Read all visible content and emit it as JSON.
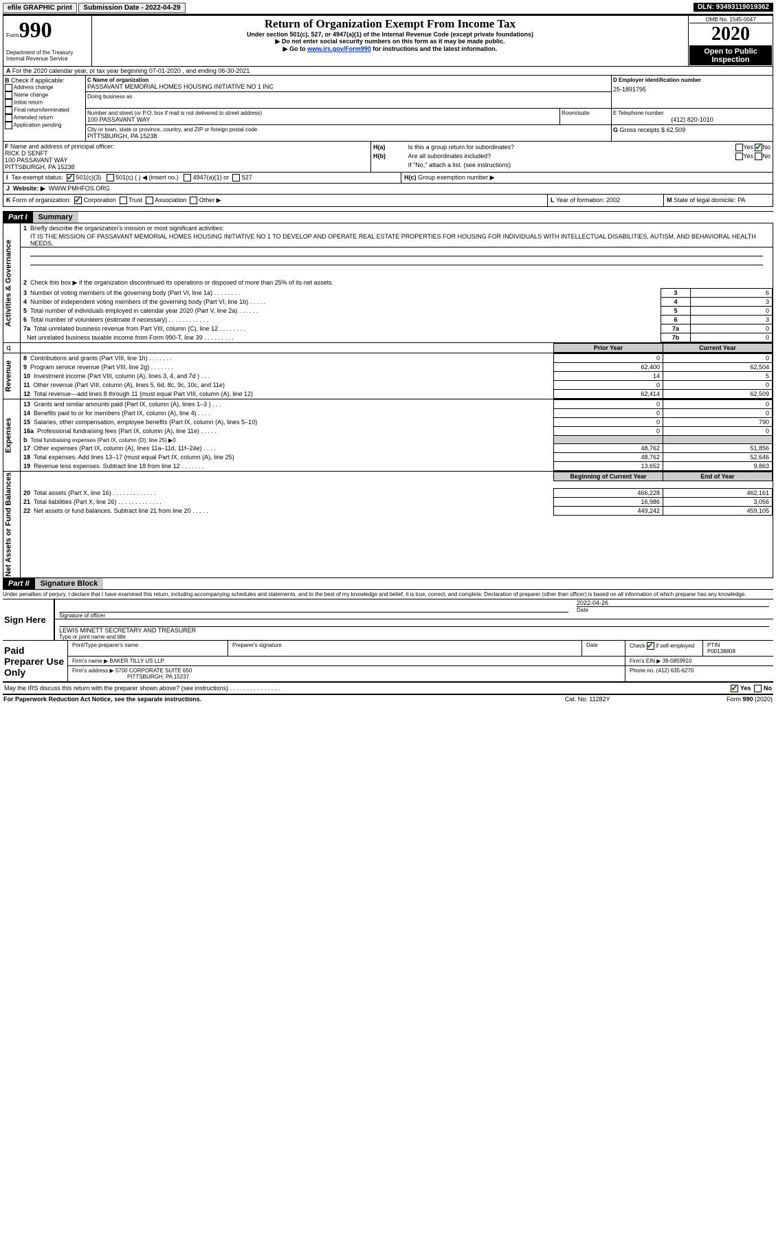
{
  "top": {
    "efile_label": "efile GRAPHIC print",
    "submission_date_label": "Submission Date - 2022-04-29",
    "dln_label": "DLN: 93493119019362"
  },
  "header": {
    "form_word": "Form",
    "form_number": "990",
    "title": "Return of Organization Exempt From Income Tax",
    "subtitle": "Under section 501(c), 527, or 4947(a)(1) of the Internal Revenue Code (except private foundations)",
    "line1": "▶ Do not enter social security numbers on this form as it may be made public.",
    "line2_prefix": "▶ Go to ",
    "line2_link": "www.irs.gov/Form990",
    "line2_suffix": " for instructions and the latest information.",
    "dept": "Department of the Treasury",
    "irs": "Internal Revenue Service",
    "omb": "OMB No. 1545-0047",
    "year": "2020",
    "open": "Open to Public",
    "inspection": "Inspection"
  },
  "periodA": {
    "prefix": "A",
    "text": "For the 2020 calendar year, or tax year beginning 07-01-2020    , and ending 06-30-2021"
  },
  "B": {
    "title": "B",
    "label": "Check if applicable:",
    "items": [
      "Address change",
      "Name change",
      "Initial return",
      "Final return/terminated",
      "Amended return",
      "Application pending"
    ]
  },
  "C": {
    "name_label": "C Name of organization",
    "name": "PASSAVANT MEMORIAL HOMES HOUSING INITIATIVE NO 1 INC",
    "dba_label": "Doing business as",
    "street_label": "Number and street (or P.O. box if mail is not delivered to street address)",
    "room_label": "Room/suite",
    "street": "100 PASSAVANT WAY",
    "city_label": "City or town, state or province, country, and ZIP or foreign postal code",
    "city": "PITTSBURGH, PA   15238"
  },
  "D": {
    "label": "D Employer identification number",
    "value": "25-1891795"
  },
  "E": {
    "label": "E Telephone number",
    "value": "(412) 820-1010"
  },
  "G": {
    "label": "G",
    "text": "Gross receipts $",
    "value": "62,509"
  },
  "F": {
    "label": "F",
    "text": "Name and address of principal officer:",
    "name": "RICK D SENFT",
    "addr1": "100 PASSAVANT WAY",
    "addr2": "PITTSBURGH, PA  15238"
  },
  "H": {
    "a_label": "H(a)",
    "a_text": "Is this a group return for subordinates?",
    "a_yes": "Yes",
    "a_no": "No",
    "b_label": "H(b)",
    "b_text": "Are all subordinates included?",
    "b_yes": "Yes",
    "b_no": "No",
    "b_note": "If \"No,\" attach a list. (see instructions)",
    "c_label": "H(c)",
    "c_text": "Group exemption number ▶"
  },
  "I": {
    "label": "I",
    "text": "Tax-exempt status:",
    "c3": "501(c)(3)",
    "cblank": "501(c) (   ) ◀ (insert no.)",
    "a1": "4947(a)(1) or",
    "c527": "527"
  },
  "J": {
    "label": "J",
    "text": "Website: ▶",
    "value": "WWW.PMHFOS.ORG"
  },
  "K": {
    "label": "K",
    "text": "Form of organization:",
    "corp": "Corporation",
    "trust": "Trust",
    "assoc": "Association",
    "other": "Other ▶"
  },
  "LM": {
    "L_label": "L",
    "L_text": "Year of formation:",
    "L_val": "2002",
    "M_label": "M",
    "M_text": "State of legal domicile:",
    "M_val": "PA"
  },
  "part1": {
    "header": "Part I",
    "title": "Summary",
    "line1_num": "1",
    "line1_txt": "Briefly describe the organization's mission or most significant activities:",
    "mission": "IT IS THE MISSION OF PASSAVANT MEMORIAL HOMES HOUSING INITIATIVE NO 1 TO DEVELOP AND OPERATE REAL ESTATE PROPERTIES FOR HOUSING FOR INDIVIDUALS WITH INTELLECTUAL DISABILITIES, AUTISM, AND BEHAVIORAL HEALTH NEEDS.",
    "line2_num": "2",
    "line2_txt": "Check this box ▶       if the organization discontinued its operations or disposed of more than 25% of its net assets.",
    "rows": [
      {
        "n": "3",
        "t": "Number of voting members of the governing body (Part VI, line 1a)   .    .    .    .    .    .    .    .",
        "box": "3",
        "val": "6"
      },
      {
        "n": "4",
        "t": "Number of independent voting members of the governing body (Part VI, line 1b)   .    .    .    .    .",
        "box": "4",
        "val": "3"
      },
      {
        "n": "5",
        "t": "Total number of individuals employed in calendar year 2020 (Part V, line 2a)   .    .    .    .    .    .",
        "box": "5",
        "val": "0"
      },
      {
        "n": "6",
        "t": "Total number of volunteers (estimate if necessary)   .    .    .    .    .    .    .    .    .    .    .    .",
        "box": "6",
        "val": "3"
      },
      {
        "n": "7a",
        "t": "Total unrelated business revenue from Part VIII, column (C), line 12   .    .    .    .    .    .    .    .",
        "box": "7a",
        "val": "0"
      },
      {
        "n": "",
        "t": "Net unrelated business taxable income from Form 990-T, line 39   .    .    .    .    .    .    .    .    .",
        "box": "7b",
        "val": "0"
      }
    ],
    "b_n": "b",
    "prior": "Prior Year",
    "current": "Current Year",
    "rev": [
      {
        "n": "8",
        "t": "Contributions and grants (Part VIII, line 1h)   .    .    .    .    .    .    .",
        "p": "0",
        "c": "0"
      },
      {
        "n": "9",
        "t": "Program service revenue (Part VIII, line 2g)   .    .    .    .    .    .    .",
        "p": "62,400",
        "c": "62,504"
      },
      {
        "n": "10",
        "t": "Investment income (Part VIII, column (A), lines 3, 4, and 7d )   .    .    .",
        "p": "14",
        "c": "5"
      },
      {
        "n": "11",
        "t": "Other revenue (Part VIII, column (A), lines 5, 6d, 8c, 9c, 10c, and 11e)",
        "p": "0",
        "c": "0"
      },
      {
        "n": "12",
        "t": "Total revenue—add lines 8 through 11 (must equal Part VIII, column (A), line 12)",
        "p": "62,414",
        "c": "62,509"
      }
    ],
    "exp": [
      {
        "n": "13",
        "t": "Grants and similar amounts paid (Part IX, column (A), lines 1–3 )   .    .    .",
        "p": "0",
        "c": "0"
      },
      {
        "n": "14",
        "t": "Benefits paid to or for members (Part IX, column (A), line 4)   .    .    .    .",
        "p": "0",
        "c": "0"
      },
      {
        "n": "15",
        "t": "Salaries, other compensation, employee benefits (Part IX, column (A), lines 5–10)",
        "p": "0",
        "c": "790"
      },
      {
        "n": "16a",
        "t": "Professional fundraising fees (Part IX, column (A), line 11e)   .    .    .    .    .",
        "p": "0",
        "c": "0"
      },
      {
        "n": "b",
        "t": "Total fundraising expenses (Part IX, column (D), line 25) ▶0",
        "p": "",
        "c": "",
        "grey": true,
        "smallb": true
      },
      {
        "n": "17",
        "t": "Other expenses (Part IX, column (A), lines 11a–11d, 11f–24e)   .    .    .    .",
        "p": "48,762",
        "c": "51,856"
      },
      {
        "n": "18",
        "t": "Total expenses. Add lines 13–17 (must equal Part IX, column (A), line 25)",
        "p": "48,762",
        "c": "52,646"
      },
      {
        "n": "19",
        "t": "Revenue less expenses. Subtract line 18 from line 12   .    .    .    .    .    .    .",
        "p": "13,652",
        "c": "9,863"
      }
    ],
    "begin": "Beginning of Current Year",
    "end": "End of Year",
    "net": [
      {
        "n": "20",
        "t": "Total assets (Part X, line 16)   .    .    .    .    .    .    .    .    .    .    .    .    .",
        "p": "466,228",
        "c": "462,161"
      },
      {
        "n": "21",
        "t": "Total liabilities (Part X, line 26)   .    .    .    .    .    .    .    .    .    .    .    .    .",
        "p": "16,986",
        "c": "3,056"
      },
      {
        "n": "22",
        "t": "Net assets or fund balances. Subtract line 21 from line 20   .    .    .    .    .",
        "p": "449,242",
        "c": "459,105"
      }
    ],
    "side_gov": "Activities & Governance",
    "side_rev": "Revenue",
    "side_exp": "Expenses",
    "side_net": "Net Assets or Fund Balances"
  },
  "part2": {
    "header": "Part II",
    "title": "Signature Block",
    "declaration": "Under penalties of perjury, I declare that I have examined this return, including accompanying schedules and statements, and to the best of my knowledge and belief, it is true, correct, and complete. Declaration of preparer (other than officer) is based on all information of which preparer has any knowledge.",
    "sign_here": "Sign Here",
    "sig_officer": "Signature of officer",
    "date": "Date",
    "date_val": "2022-04-26",
    "officer_name": "LEWIS MINETT  SECRETARY AND TREASURER",
    "type_name": "Type or print name and title",
    "paid": "Paid Preparer Use Only",
    "p_name": "Print/Type preparer's name",
    "p_sig": "Preparer's signature",
    "p_date": "Date",
    "p_check": "Check        if self-employed",
    "ptin_l": "PTIN",
    "ptin": "P00138808",
    "firm_name_l": "Firm's name    ▶",
    "firm_name": "BAKER TILLY US LLP",
    "firm_ein_l": "Firm's EIN ▶",
    "firm_ein": "39-0859910",
    "firm_addr_l": "Firm's address ▶",
    "firm_addr1": "5700 CORPORATE SUITE 650",
    "firm_addr2": "PITTSBURGH, PA  15237",
    "phone_l": "Phone no.",
    "phone": "(412) 635-6270",
    "discuss": "May the IRS discuss this return with the preparer shown above? (see instructions)   .    .    .    .    .    .    .    .    .    .    .    .    .    .    .",
    "yes": "Yes",
    "no": "No"
  },
  "footer": {
    "pra": "For Paperwork Reduction Act Notice, see the separate instructions.",
    "cat": "Cat. No. 11282Y",
    "form": "Form ",
    "form_b": "990",
    "form_y": " (2020)"
  }
}
